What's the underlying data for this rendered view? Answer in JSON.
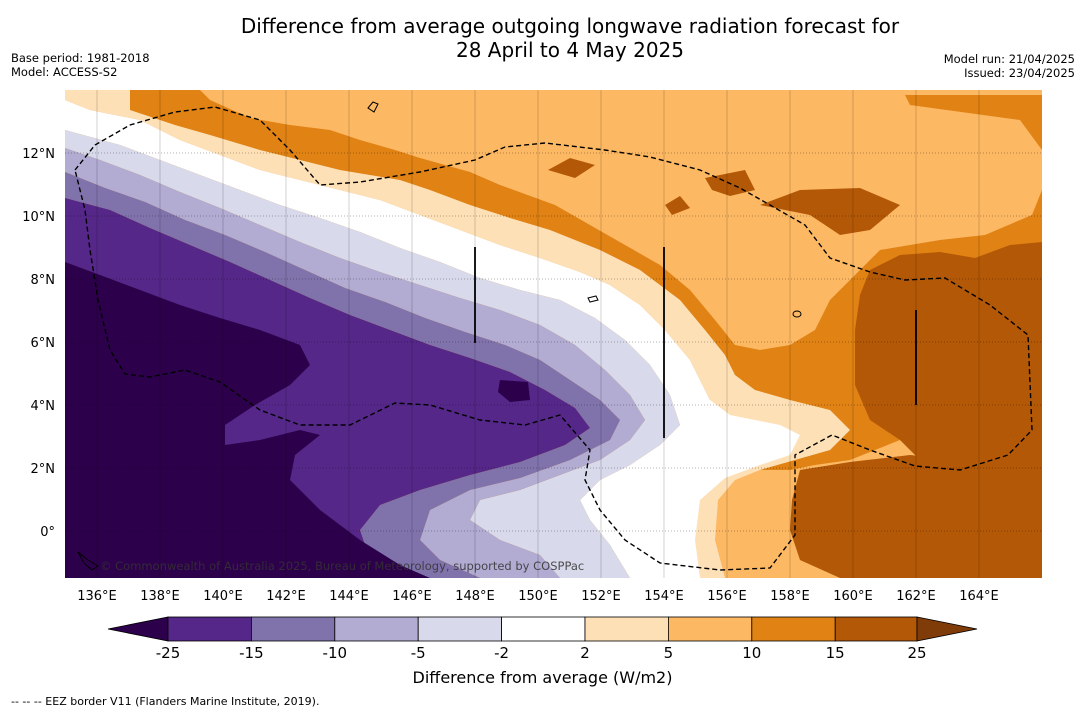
{
  "header": {
    "title_line1": "Difference from average outgoing longwave radiation forecast for",
    "title_line2": "28 April to 4 May 2025",
    "base_period": "Base period: 1981-2018",
    "model": "Model: ACCESS-S2",
    "model_run": "Model run: 21/04/2025",
    "issued": "Issued: 23/04/2025"
  },
  "map": {
    "lon_ticks": [
      "136°E",
      "138°E",
      "140°E",
      "142°E",
      "144°E",
      "146°E",
      "148°E",
      "150°E",
      "152°E",
      "154°E",
      "156°E",
      "158°E",
      "160°E",
      "162°E",
      "164°E"
    ],
    "lat_ticks": [
      "12°N",
      "10°N",
      "8°N",
      "6°N",
      "4°N",
      "2°N",
      "0°"
    ],
    "credit": "© Commonwealth of Australia 2025, Bureau of Meteorology, supported by COSPPac"
  },
  "colorbar": {
    "labels": [
      "-25",
      "-15",
      "-10",
      "-5",
      "-2",
      "2",
      "5",
      "10",
      "15",
      "25"
    ],
    "colors": {
      "below": "#2d004b",
      "c1": "#542788",
      "c2": "#8073ac",
      "c3": "#b2abd2",
      "c4": "#d8daeb",
      "c5": "#ffffff",
      "c6": "#fee0b6",
      "c7": "#fdb863",
      "c8": "#e08214",
      "c9": "#b35806",
      "above": "#7f3b08"
    },
    "label": "Difference from average (W/m2)"
  },
  "footnote": "-- -- -- EEZ border V11 (Flanders Marine Institute, 2019)."
}
